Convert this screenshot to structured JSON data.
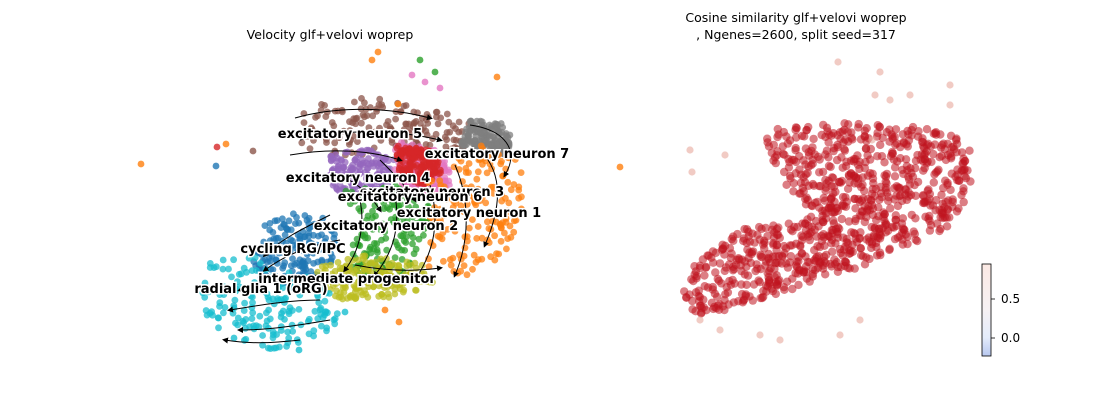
{
  "figure": {
    "left_title": "Velocity glf+velovi woprep",
    "right_title_line1": "Cosine similarity glf+velovi woprep",
    "right_title_line2": ", Ngenes=2600, split seed=317"
  },
  "chart_data": [
    {
      "type": "scatter",
      "subtype": "embedding-with-velocity-streamlines",
      "title": "Velocity glf+velovi woprep",
      "axes_visible": false,
      "clusters": [
        {
          "name": "excitatory neuron 5",
          "color": "#8c564b"
        },
        {
          "name": "excitatory neuron 7",
          "color": "#7f7f7f"
        },
        {
          "name": "excitatory neuron 4",
          "color": "#9467bd"
        },
        {
          "name": "excitatory neuron 3",
          "color": "#e377c2"
        },
        {
          "name": "excitatory neuron 6",
          "color": "#d62728"
        },
        {
          "name": "excitatory neuron 1",
          "color": "#ff7f0e"
        },
        {
          "name": "excitatory neuron 2",
          "color": "#2ca02c"
        },
        {
          "name": "cycling RG/IPC",
          "color": "#1f77b4"
        },
        {
          "name": "intermediate progenitor",
          "color": "#bcbd22"
        },
        {
          "name": "radial glia 1 (oRG)",
          "color": "#17becf"
        }
      ],
      "streamlines": "black arrows"
    },
    {
      "type": "scatter",
      "subtype": "embedding-colored-by-value",
      "title": "Cosine similarity glf+velovi woprep\n, Ngenes=2600, split seed=317",
      "axes_visible": false,
      "point_color": "#c0141f",
      "colorbar": {
        "colormap": "coolwarm",
        "ticks": [
          "0.5",
          "0.0"
        ],
        "range": [
          -0.25,
          0.95
        ]
      }
    }
  ]
}
